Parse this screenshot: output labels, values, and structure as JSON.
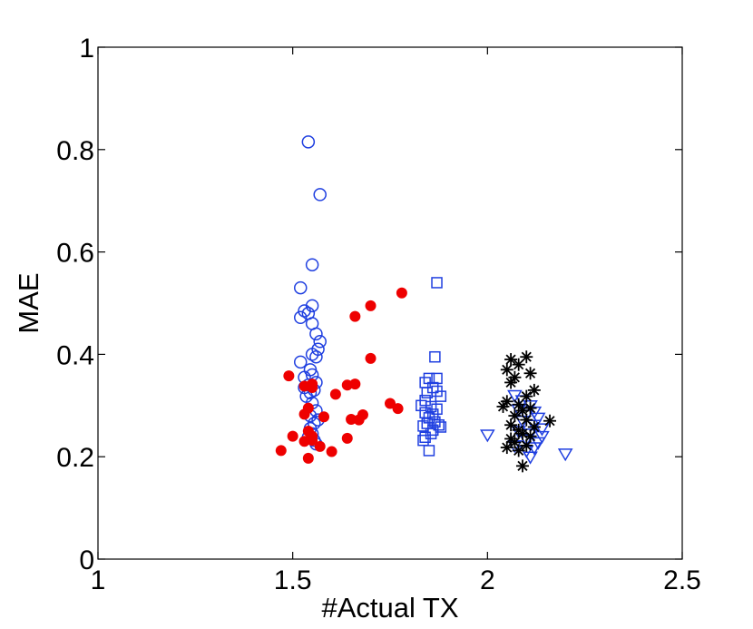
{
  "chart_data": {
    "type": "scatter",
    "title": "",
    "xlabel": "#Actual TX",
    "ylabel": "MAE",
    "xlim": [
      1,
      2.5
    ],
    "ylim": [
      0,
      1
    ],
    "x_ticks": [
      "1",
      "1.5",
      "2",
      "2.5"
    ],
    "y_ticks": [
      "0",
      "0.2",
      "0.4",
      "0.6",
      "0.8",
      "1"
    ],
    "grid": false,
    "legend": "none",
    "series": [
      {
        "marker": "open-circle",
        "color": "#1f3fe0",
        "points": [
          [
            1.54,
            0.815
          ],
          [
            1.57,
            0.712
          ],
          [
            1.55,
            0.575
          ],
          [
            1.52,
            0.53
          ],
          [
            1.55,
            0.495
          ],
          [
            1.53,
            0.485
          ],
          [
            1.54,
            0.48
          ],
          [
            1.52,
            0.472
          ],
          [
            1.55,
            0.46
          ],
          [
            1.56,
            0.44
          ],
          [
            1.57,
            0.425
          ],
          [
            1.565,
            0.41
          ],
          [
            1.55,
            0.4
          ],
          [
            1.56,
            0.395
          ],
          [
            1.52,
            0.385
          ],
          [
            1.545,
            0.37
          ],
          [
            1.53,
            0.355
          ],
          [
            1.55,
            0.36
          ],
          [
            1.56,
            0.345
          ],
          [
            1.54,
            0.34
          ],
          [
            1.53,
            0.335
          ],
          [
            1.555,
            0.33
          ],
          [
            1.545,
            0.325
          ],
          [
            1.535,
            0.318
          ],
          [
            1.55,
            0.305
          ],
          [
            1.56,
            0.29
          ],
          [
            1.545,
            0.28
          ],
          [
            1.565,
            0.272
          ],
          [
            1.555,
            0.265
          ],
          [
            1.545,
            0.255
          ],
          [
            1.55,
            0.245
          ],
          [
            1.54,
            0.238
          ],
          [
            1.555,
            0.232
          ],
          [
            1.56,
            0.225
          ]
        ]
      },
      {
        "marker": "filled-circle",
        "color": "#ee0000",
        "points": [
          [
            1.78,
            0.52
          ],
          [
            1.7,
            0.495
          ],
          [
            1.66,
            0.474
          ],
          [
            1.7,
            0.392
          ],
          [
            1.49,
            0.358
          ],
          [
            1.66,
            0.342
          ],
          [
            1.53,
            0.338
          ],
          [
            1.55,
            0.335
          ],
          [
            1.64,
            0.34
          ],
          [
            1.55,
            0.342
          ],
          [
            1.61,
            0.322
          ],
          [
            1.75,
            0.304
          ],
          [
            1.54,
            0.295
          ],
          [
            1.77,
            0.294
          ],
          [
            1.68,
            0.282
          ],
          [
            1.53,
            0.283
          ],
          [
            1.58,
            0.278
          ],
          [
            1.65,
            0.273
          ],
          [
            1.67,
            0.272
          ],
          [
            1.54,
            0.25
          ],
          [
            1.55,
            0.24
          ],
          [
            1.5,
            0.24
          ],
          [
            1.64,
            0.236
          ],
          [
            1.55,
            0.232
          ],
          [
            1.53,
            0.23
          ],
          [
            1.57,
            0.22
          ],
          [
            1.47,
            0.212
          ],
          [
            1.6,
            0.21
          ],
          [
            1.54,
            0.197
          ]
        ]
      },
      {
        "marker": "open-square",
        "color": "#1f3fe0",
        "points": [
          [
            1.87,
            0.54
          ],
          [
            1.865,
            0.395
          ],
          [
            1.85,
            0.353
          ],
          [
            1.87,
            0.353
          ],
          [
            1.84,
            0.345
          ],
          [
            1.86,
            0.335
          ],
          [
            1.845,
            0.325
          ],
          [
            1.87,
            0.328
          ],
          [
            1.88,
            0.318
          ],
          [
            1.84,
            0.31
          ],
          [
            1.83,
            0.3
          ],
          [
            1.855,
            0.298
          ],
          [
            1.87,
            0.293
          ],
          [
            1.84,
            0.286
          ],
          [
            1.86,
            0.283
          ],
          [
            1.85,
            0.276
          ],
          [
            1.865,
            0.268
          ],
          [
            1.845,
            0.265
          ],
          [
            1.875,
            0.262
          ],
          [
            1.88,
            0.258
          ],
          [
            1.835,
            0.26
          ],
          [
            1.86,
            0.252
          ],
          [
            1.855,
            0.245
          ],
          [
            1.84,
            0.238
          ],
          [
            1.835,
            0.232
          ],
          [
            1.85,
            0.212
          ]
        ]
      },
      {
        "marker": "open-triangle-down",
        "color": "#1f3fe0",
        "points": [
          [
            2.07,
            0.32
          ],
          [
            2.09,
            0.31
          ],
          [
            2.11,
            0.3
          ],
          [
            2.08,
            0.292
          ],
          [
            2.12,
            0.288
          ],
          [
            2.1,
            0.282
          ],
          [
            2.13,
            0.276
          ],
          [
            2.09,
            0.27
          ],
          [
            2.12,
            0.262
          ],
          [
            2.14,
            0.255
          ],
          [
            2.08,
            0.25
          ],
          [
            2.11,
            0.245
          ],
          [
            2.0,
            0.243
          ],
          [
            2.14,
            0.24
          ],
          [
            2.1,
            0.234
          ],
          [
            2.13,
            0.228
          ],
          [
            2.07,
            0.222
          ],
          [
            2.12,
            0.218
          ],
          [
            2.1,
            0.212
          ],
          [
            2.2,
            0.206
          ],
          [
            2.11,
            0.2
          ]
        ]
      },
      {
        "marker": "asterisk",
        "color": "#000000",
        "points": [
          [
            2.1,
            0.395
          ],
          [
            2.06,
            0.39
          ],
          [
            2.08,
            0.38
          ],
          [
            2.05,
            0.37
          ],
          [
            2.11,
            0.363
          ],
          [
            2.07,
            0.355
          ],
          [
            2.06,
            0.345
          ],
          [
            2.12,
            0.33
          ],
          [
            2.1,
            0.318
          ],
          [
            2.05,
            0.308
          ],
          [
            2.08,
            0.302
          ],
          [
            2.04,
            0.298
          ],
          [
            2.11,
            0.295
          ],
          [
            2.09,
            0.29
          ],
          [
            2.07,
            0.28
          ],
          [
            2.1,
            0.272
          ],
          [
            2.16,
            0.27
          ],
          [
            2.06,
            0.262
          ],
          [
            2.12,
            0.258
          ],
          [
            2.08,
            0.252
          ],
          [
            2.09,
            0.245
          ],
          [
            2.11,
            0.24
          ],
          [
            2.06,
            0.235
          ],
          [
            2.07,
            0.228
          ],
          [
            2.1,
            0.222
          ],
          [
            2.05,
            0.218
          ],
          [
            2.08,
            0.212
          ],
          [
            2.09,
            0.182
          ]
        ]
      }
    ]
  }
}
